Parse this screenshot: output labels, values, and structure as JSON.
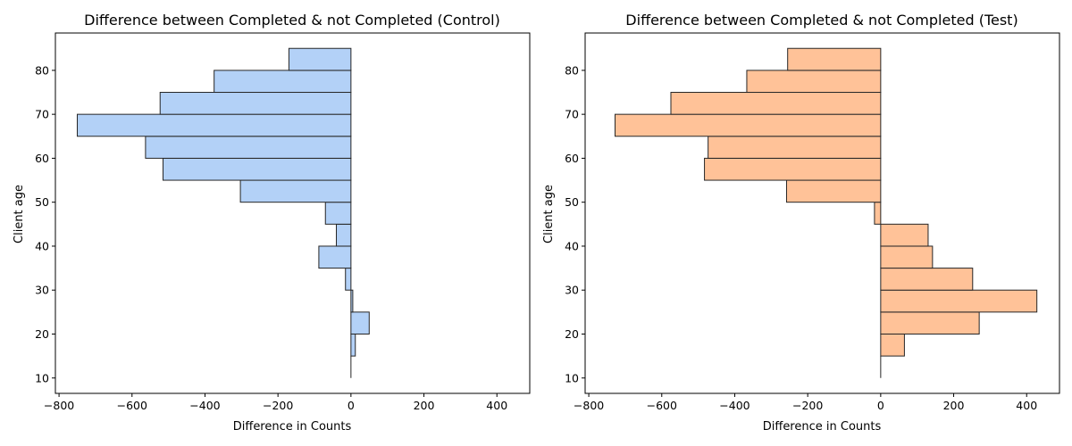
{
  "chart_data": [
    {
      "type": "bar",
      "orientation": "horizontal",
      "title": "Difference between Completed & not Completed (Control)",
      "xlabel": "Difference in Counts",
      "ylabel": "Client age",
      "xlim": [
        -810,
        490
      ],
      "ylim": [
        6.5,
        88.5
      ],
      "xticks": [
        -800,
        -600,
        -400,
        -200,
        0,
        200,
        400
      ],
      "yticks": [
        10,
        20,
        30,
        40,
        50,
        60,
        70,
        80
      ],
      "bar_color": "#b3d1f7",
      "bins": [
        {
          "from": 10,
          "to": 15,
          "value": 0
        },
        {
          "from": 15,
          "to": 20,
          "value": 12
        },
        {
          "from": 20,
          "to": 25,
          "value": 50
        },
        {
          "from": 25,
          "to": 30,
          "value": 5
        },
        {
          "from": 30,
          "to": 35,
          "value": -15
        },
        {
          "from": 35,
          "to": 40,
          "value": -88
        },
        {
          "from": 40,
          "to": 45,
          "value": -40
        },
        {
          "from": 45,
          "to": 50,
          "value": -70
        },
        {
          "from": 50,
          "to": 55,
          "value": -303
        },
        {
          "from": 55,
          "to": 60,
          "value": -515
        },
        {
          "from": 60,
          "to": 65,
          "value": -563
        },
        {
          "from": 65,
          "to": 70,
          "value": -750
        },
        {
          "from": 70,
          "to": 75,
          "value": -523
        },
        {
          "from": 75,
          "to": 80,
          "value": -375
        },
        {
          "from": 80,
          "to": 85,
          "value": -170
        }
      ]
    },
    {
      "type": "bar",
      "orientation": "horizontal",
      "title": "Difference between Completed & not Completed (Test)",
      "xlabel": "Difference in Counts",
      "ylabel": "Client age",
      "xlim": [
        -810,
        490
      ],
      "ylim": [
        6.5,
        88.5
      ],
      "xticks": [
        -800,
        -600,
        -400,
        -200,
        0,
        200,
        400
      ],
      "yticks": [
        10,
        20,
        30,
        40,
        50,
        60,
        70,
        80
      ],
      "bar_color": "#ffc298",
      "bins": [
        {
          "from": 10,
          "to": 15,
          "value": 0
        },
        {
          "from": 15,
          "to": 20,
          "value": 65
        },
        {
          "from": 20,
          "to": 25,
          "value": 270
        },
        {
          "from": 25,
          "to": 30,
          "value": 428
        },
        {
          "from": 30,
          "to": 35,
          "value": 252
        },
        {
          "from": 35,
          "to": 40,
          "value": 142
        },
        {
          "from": 40,
          "to": 45,
          "value": 130
        },
        {
          "from": 45,
          "to": 50,
          "value": -17
        },
        {
          "from": 50,
          "to": 55,
          "value": -258
        },
        {
          "from": 55,
          "to": 60,
          "value": -483
        },
        {
          "from": 60,
          "to": 65,
          "value": -473
        },
        {
          "from": 65,
          "to": 70,
          "value": -728
        },
        {
          "from": 70,
          "to": 75,
          "value": -575
        },
        {
          "from": 75,
          "to": 80,
          "value": -367
        },
        {
          "from": 80,
          "to": 85,
          "value": -255
        }
      ]
    }
  ]
}
